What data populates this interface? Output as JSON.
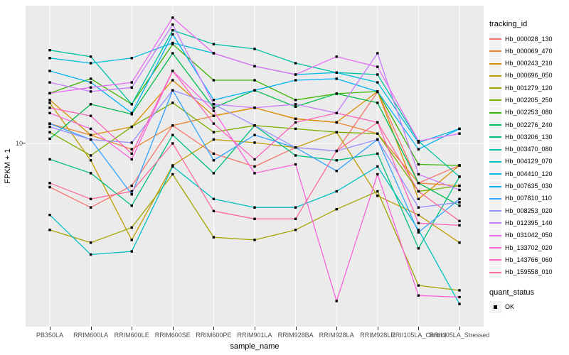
{
  "chart_data": {
    "type": "line",
    "title": "",
    "xlabel": "sample_name",
    "ylabel": "FPKM + 1",
    "y_scale": "log10",
    "y_tick_labels": [
      "10"
    ],
    "legend_title": "tracking_id",
    "legend2_title": "quant_status",
    "legend2_entries": [
      "OK"
    ],
    "legend_position": "right",
    "grid": "on",
    "panel_bg": "#EBEBEB",
    "grid_color": "#FFFFFF",
    "marker": "black-square",
    "categories": [
      "PB350LA",
      "RRIM600LA",
      "RRIM600LE",
      "RRIM600SE",
      "RRIM600PE",
      "RRIM901LA",
      "RRIM928BA",
      "RRIM928LA",
      "RRIM928LE",
      "RRII105LA_Control",
      "RRII105LA_Stressed"
    ],
    "series": [
      {
        "name": "Hb_000028_130",
        "color": "#F8766D",
        "values": [
          5.8,
          4.5,
          5.9,
          12.5,
          8.8,
          7.5,
          9.5,
          9.1,
          19.0,
          6.1,
          7.6
        ]
      },
      {
        "name": "Hb_000069_470",
        "color": "#EA8331",
        "values": [
          12.8,
          11.1,
          9.3,
          12.5,
          14.1,
          15.6,
          13.6,
          13.0,
          11.3,
          6.1,
          5.9
        ]
      },
      {
        "name": "Hb_000243_210",
        "color": "#D89000",
        "values": [
          17.2,
          11.1,
          12.3,
          22.0,
          14.1,
          15.6,
          13.6,
          13.0,
          19.1,
          5.0,
          7.6
        ]
      },
      {
        "name": "Hb_000696_050",
        "color": "#C09B00",
        "values": [
          16.6,
          8.1,
          3.0,
          7.6,
          10.5,
          10.1,
          9.5,
          11.5,
          5.2,
          4.1,
          2.9
        ]
      },
      {
        "name": "Hb_001279_120",
        "color": "#A3A500",
        "values": [
          3.4,
          2.9,
          3.5,
          6.8,
          3.1,
          3.0,
          3.4,
          4.4,
          5.5,
          1.7,
          1.6
        ]
      },
      {
        "name": "Hb_002205_250",
        "color": "#7CAE00",
        "values": [
          11.5,
          8.6,
          12.3,
          16.6,
          11.5,
          12.5,
          12.0,
          11.5,
          11.3,
          5.5,
          5.9
        ]
      },
      {
        "name": "Hb_002253_080",
        "color": "#39B600",
        "values": [
          18.7,
          22.4,
          16.3,
          34.5,
          22.0,
          22.0,
          17.2,
          18.6,
          19.1,
          7.7,
          7.6
        ]
      },
      {
        "name": "Hb_002276_240",
        "color": "#00BB4E",
        "values": [
          10.6,
          16.3,
          14.4,
          30.8,
          15.6,
          19.4,
          15.8,
          18.6,
          16.6,
          6.1,
          4.6
        ]
      },
      {
        "name": "Hb_003206_130",
        "color": "#00BF7D",
        "values": [
          8.2,
          6.9,
          4.6,
          11.1,
          6.9,
          12.5,
          8.6,
          8.1,
          8.8,
          2.7,
          6.6
        ]
      },
      {
        "name": "Hb_003470_080",
        "color": "#00C1A3",
        "values": [
          32.0,
          29.5,
          16.3,
          41.0,
          34.5,
          32.5,
          27.2,
          24.2,
          23.6,
          10.3,
          6.6
        ]
      },
      {
        "name": "Hb_004129_070",
        "color": "#00BFC4",
        "values": [
          4.1,
          2.5,
          2.6,
          7.5,
          5.0,
          4.5,
          4.5,
          5.5,
          7.5,
          3.4,
          1.35
        ]
      },
      {
        "name": "Hb_004410_120",
        "color": "#00BAE0",
        "values": [
          29.0,
          27.2,
          29.0,
          35.0,
          30.8,
          26.2,
          23.6,
          24.2,
          21.4,
          10.1,
          12.0
        ]
      },
      {
        "name": "Hb_007635_030",
        "color": "#00B0F6",
        "values": [
          24.7,
          21.4,
          14.6,
          39.0,
          17.2,
          19.4,
          22.0,
          22.4,
          19.1,
          9.3,
          12.0
        ]
      },
      {
        "name": "Hb_007810_110",
        "color": "#35A2FF",
        "values": [
          12.8,
          10.5,
          5.3,
          19.4,
          8.1,
          11.1,
          9.5,
          7.1,
          10.5,
          3.3,
          5.0
        ]
      },
      {
        "name": "Hb_008253_020",
        "color": "#9590FF",
        "values": [
          12.3,
          10.5,
          10.1,
          19.4,
          16.3,
          12.5,
          9.5,
          9.1,
          10.5,
          4.5,
          4.8
        ]
      },
      {
        "name": "Hb_012395_140",
        "color": "#C77CFF",
        "values": [
          21.4,
          19.1,
          20.1,
          44.0,
          16.3,
          15.6,
          16.3,
          14.6,
          30.8,
          6.8,
          5.6
        ]
      },
      {
        "name": "Hb_031042_050",
        "color": "#E76BF3",
        "values": [
          18.7,
          20.1,
          21.4,
          48.0,
          30.8,
          26.2,
          23.6,
          29.5,
          26.0,
          10.3,
          11.3
        ]
      },
      {
        "name": "Hb_133702_020",
        "color": "#FA62DB",
        "values": [
          14.6,
          12.0,
          8.2,
          24.7,
          15.0,
          6.9,
          7.7,
          1.4,
          6.8,
          1.5,
          1.47
        ]
      },
      {
        "name": "Hb_143766_060",
        "color": "#FF62BC",
        "values": [
          15.6,
          14.1,
          8.8,
          24.7,
          12.8,
          8.2,
          13.0,
          14.6,
          13.0,
          3.7,
          3.6
        ]
      },
      {
        "name": "Hb_159558_010",
        "color": "#FF6A98",
        "values": [
          6.1,
          5.0,
          5.5,
          10.0,
          4.3,
          3.9,
          3.9,
          9.1,
          13.0,
          5.5,
          3.8
        ]
      }
    ]
  }
}
